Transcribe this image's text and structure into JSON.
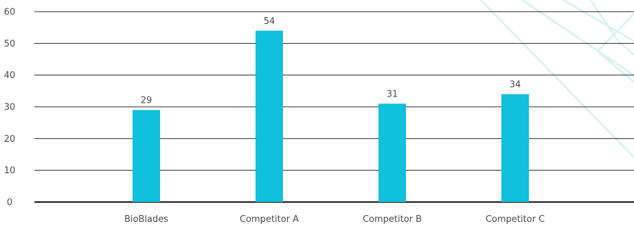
{
  "colors": {
    "bar": "#10c0dd",
    "grid": "#222222",
    "baseline": "#111111",
    "decoration": "#d7f1ee"
  },
  "chart_data": {
    "type": "bar",
    "categories": [
      "BioBlades",
      "Competitor A",
      "Competitor B",
      "Competitor C"
    ],
    "values": [
      29,
      54,
      31,
      34
    ],
    "data_labels": [
      "29",
      "54",
      "31",
      "34"
    ],
    "ylim": [
      0,
      60
    ],
    "yticks": [
      0,
      10,
      20,
      30,
      40,
      50,
      60
    ],
    "grid": true,
    "legend": "none"
  }
}
